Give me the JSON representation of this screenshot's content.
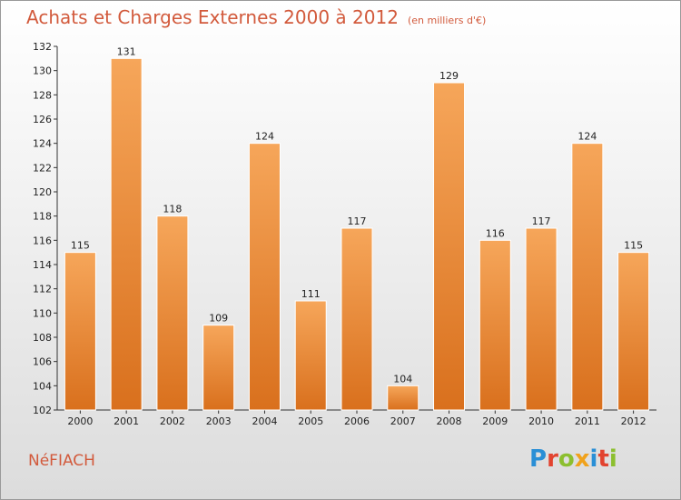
{
  "title": "Achats et Charges Externes 2000 à 2012",
  "unit": "(en milliers d'€)",
  "commune": "NéFIACH",
  "logo": {
    "letters": [
      "P",
      "r",
      "o",
      "x",
      "i",
      "t",
      "i"
    ]
  },
  "colors": {
    "bar_top": "#f6a65a",
    "bar_bottom": "#d9701d",
    "title": "#d25a3c"
  },
  "chart_data": {
    "type": "bar",
    "categories": [
      "2000",
      "2001",
      "2002",
      "2003",
      "2004",
      "2005",
      "2006",
      "2007",
      "2008",
      "2009",
      "2010",
      "2011",
      "2012"
    ],
    "values": [
      115,
      131,
      118,
      109,
      124,
      111,
      117,
      104,
      129,
      116,
      117,
      124,
      115
    ],
    "title": "Achats et Charges Externes 2000 à 2012",
    "xlabel": "",
    "ylabel": "",
    "ylim": [
      102,
      132
    ],
    "yticks": [
      102,
      104,
      106,
      108,
      110,
      112,
      114,
      116,
      118,
      120,
      122,
      124,
      126,
      128,
      130,
      132
    ],
    "grid": false,
    "legend": "none"
  }
}
